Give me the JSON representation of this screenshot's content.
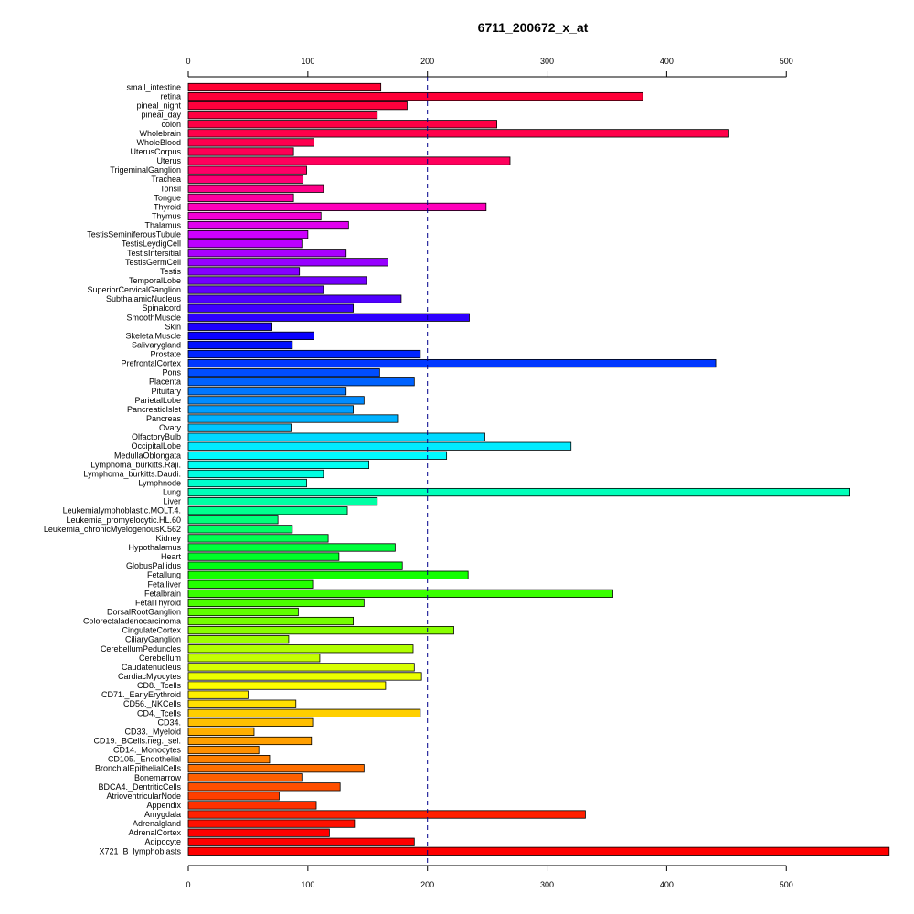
{
  "chart_data": {
    "type": "bar",
    "orientation": "horizontal",
    "title": "6711_200672_x_at",
    "xlabel": "",
    "ylabel": "",
    "xlim": [
      0,
      585
    ],
    "xticks": [
      0,
      100,
      200,
      300,
      400,
      500
    ],
    "reference_line": {
      "value": 200,
      "style": "dashed",
      "color": "#00008b"
    },
    "grid": false,
    "categories": [
      "small_intestine",
      "retina",
      "pineal_night",
      "pineal_day",
      "colon",
      "Wholebrain",
      "WholeBlood",
      "UterusCorpus",
      "Uterus",
      "TrigeminalGanglion",
      "Trachea",
      "Tonsil",
      "Tongue",
      "Thyroid",
      "Thymus",
      "Thalamus",
      "TestisSeminiferousTubule",
      "TestisLeydigCell",
      "TestisIntersitial",
      "TestisGermCell",
      "Testis",
      "TemporalLobe",
      "SuperiorCervicalGanglion",
      "SubthalamicNucleus",
      "Spinalcord",
      "SmoothMuscle",
      "Skin",
      "SkeletalMuscle",
      "Salivarygland",
      "Prostate",
      "PrefrontalCortex",
      "Pons",
      "Placenta",
      "Pituitary",
      "ParietalLobe",
      "PancreaticIslet",
      "Pancreas",
      "Ovary",
      "OlfactoryBulb",
      "OccipitalLobe",
      "MedullaOblongata",
      "Lymphoma_burkitts.Raji.",
      "Lymphoma_burkitts.Daudi.",
      "Lymphnode",
      "Lung",
      "Liver",
      "Leukemialymphoblastic.MOLT.4.",
      "Leukemia_promyelocytic.HL.60",
      "Leukemia_chronicMyelogenousK.562",
      "Kidney",
      "Hypothalamus",
      "Heart",
      "GlobusPallidus",
      "Fetallung",
      "Fetalliver",
      "Fetalbrain",
      "FetalThyroid",
      "DorsalRootGanglion",
      "Colorectaladenocarcinoma",
      "CingulateCortex",
      "CiliaryGanglion",
      "CerebellumPeduncles",
      "Cerebellum",
      "Caudatenucleus",
      "CardiacMyocytes",
      "CD8._Tcells",
      "CD71._EarlyErythroid",
      "CD56._NKCells",
      "CD4._Tcells",
      "CD34.",
      "CD33._Myeloid",
      "CD19._BCells.neg._sel.",
      "CD14._Monocytes",
      "CD105._Endothelial",
      "BronchialEpithelialCells",
      "Bonemarrow",
      "BDCA4._DentriticCells",
      "AtrioventricularNode",
      "Appendix",
      "Amygdala",
      "Adrenalgland",
      "AdrenalCortex",
      "Adipocyte",
      "X721_B_lymphoblasts"
    ],
    "values": [
      161,
      380,
      183,
      158,
      258,
      452,
      105,
      88,
      269,
      99,
      96,
      113,
      88,
      249,
      111,
      134,
      100,
      95,
      132,
      167,
      93,
      149,
      113,
      178,
      138,
      235,
      70,
      105,
      87,
      194,
      441,
      160,
      189,
      132,
      147,
      138,
      175,
      86,
      248,
      320,
      216,
      151,
      113,
      99,
      553,
      158,
      133,
      75,
      87,
      117,
      173,
      126,
      179,
      234,
      104,
      355,
      147,
      92,
      138,
      222,
      84,
      188,
      110,
      189,
      195,
      165,
      50,
      90,
      194,
      104,
      55,
      103,
      59,
      68,
      147,
      95,
      127,
      76,
      107,
      332,
      139,
      118,
      189,
      586
    ],
    "colors": [
      "#ff0033",
      "#ff0038",
      "#ff003c",
      "#ff0041",
      "#ff0045",
      "#ff004a",
      "#ff004f",
      "#ff0055",
      "#ff005c",
      "#ff0066",
      "#ff0074",
      "#ff0088",
      "#ff00a0",
      "#ff00bb",
      "#f300d6",
      "#e000ee",
      "#ce00ff",
      "#bb00ff",
      "#a900ff",
      "#9700ff",
      "#8600ff",
      "#7400ff",
      "#6200ff",
      "#5000ff",
      "#3f00ff",
      "#2d00ff",
      "#1c00ff",
      "#0a00ff",
      "#0010ff",
      "#0024ff",
      "#0038ff",
      "#004dff",
      "#0062ff",
      "#0077ff",
      "#008bff",
      "#009fff",
      "#00b3ff",
      "#00c6ff",
      "#00d9ff",
      "#00ebff",
      "#00f9ff",
      "#00fff3",
      "#00ffe1",
      "#00ffcd",
      "#00ffb9",
      "#00ffa4",
      "#00ff8f",
      "#00ff7a",
      "#00ff65",
      "#00ff50",
      "#00ff3c",
      "#00ff28",
      "#00ff14",
      "#14ff00",
      "#24ff00",
      "#38ff00",
      "#4cff00",
      "#60ff00",
      "#74ff00",
      "#88ff00",
      "#9cff00",
      "#b0ff00",
      "#c4ff00",
      "#d8ff00",
      "#ecff00",
      "#ffff00",
      "#ffef00",
      "#ffdf00",
      "#ffcf00",
      "#ffbf00",
      "#ffaf00",
      "#ff9f00",
      "#ff8f00",
      "#ff7f00",
      "#ff6f00",
      "#ff5f00",
      "#ff4f00",
      "#ff3f00",
      "#ff3000",
      "#ff2000",
      "#ff1000",
      "#ff0000",
      "#ff0000",
      "#ff0000"
    ]
  }
}
